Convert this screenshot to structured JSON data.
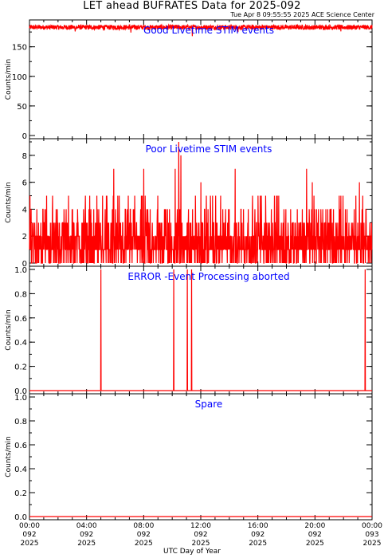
{
  "page": {
    "title": "LET ahead BUFRATES Data for 2025-092",
    "timestamp": "Tue Apr  8 09:55:55 2025 ACE Science Center",
    "xlabel": "UTC Day of Year"
  },
  "colors": {
    "data": "#ff0000",
    "panel_title": "#0000ff",
    "axes": "#000000"
  },
  "chart_data": [
    {
      "type": "line",
      "title": "Good Livetime STIM events",
      "ylabel": "Counts/min",
      "ylim": [
        0,
        190
      ],
      "yticks": [
        0,
        50,
        100,
        150
      ],
      "x_range_hours": [
        0,
        24
      ],
      "pattern": "noisy_high",
      "baseline": 183,
      "noise": 4,
      "dips": [
        [
          3.2,
          176
        ],
        [
          7.1,
          174
        ],
        [
          11.4,
          168
        ],
        [
          14.6,
          175
        ],
        [
          21.8,
          176
        ]
      ],
      "series": [
        {
          "name": "",
          "values": []
        }
      ]
    },
    {
      "type": "line",
      "title": "Poor Livetime STIM events",
      "ylabel": "Counts/min",
      "ylim": [
        0,
        9
      ],
      "yticks": [
        0,
        2,
        4,
        6,
        8
      ],
      "x_range_hours": [
        0,
        24
      ],
      "pattern": "poisson",
      "mean": 1.6,
      "peaks": [
        [
          10.45,
          9
        ],
        [
          10.6,
          8
        ],
        [
          10.2,
          7
        ],
        [
          5.9,
          7
        ],
        [
          8.0,
          7
        ],
        [
          14.4,
          7
        ],
        [
          19.4,
          7
        ],
        [
          19.8,
          6
        ],
        [
          23.1,
          6
        ],
        [
          1.2,
          5
        ],
        [
          12.0,
          6
        ],
        [
          17.3,
          5
        ]
      ],
      "series": [
        {
          "name": "",
          "values": []
        }
      ]
    },
    {
      "type": "line",
      "title": "ERROR -Event Processing aborted",
      "ylabel": "Counts/min",
      "ylim": [
        0,
        1
      ],
      "yticks": [
        0.0,
        0.2,
        0.4,
        0.6,
        0.8,
        1.0
      ],
      "x_range_hours": [
        0,
        24
      ],
      "pattern": "spikes",
      "spikes_hours": [
        5.0,
        10.1,
        11.05,
        11.35,
        23.5
      ],
      "spike_value": 1.0,
      "series": [
        {
          "name": "",
          "values": []
        }
      ]
    },
    {
      "type": "line",
      "title": "Spare",
      "ylabel": "Counts/min",
      "ylim": [
        0,
        1
      ],
      "yticks": [
        0.0,
        0.2,
        0.4,
        0.6,
        0.8,
        1.0
      ],
      "x_range_hours": [
        0,
        24
      ],
      "pattern": "flat",
      "value": 0,
      "series": [
        {
          "name": "",
          "values": []
        }
      ]
    }
  ],
  "x_ticks": [
    {
      "time": "00:00",
      "doy": "092",
      "year": "2025"
    },
    {
      "time": "04:00",
      "doy": "092",
      "year": "2025"
    },
    {
      "time": "08:00",
      "doy": "092",
      "year": "2025"
    },
    {
      "time": "12:00",
      "doy": "092",
      "year": "2025"
    },
    {
      "time": "16:00",
      "doy": "092",
      "year": "2025"
    },
    {
      "time": "20:00",
      "doy": "092",
      "year": "2025"
    },
    {
      "time": "00:00",
      "doy": "093",
      "year": "2025"
    }
  ]
}
